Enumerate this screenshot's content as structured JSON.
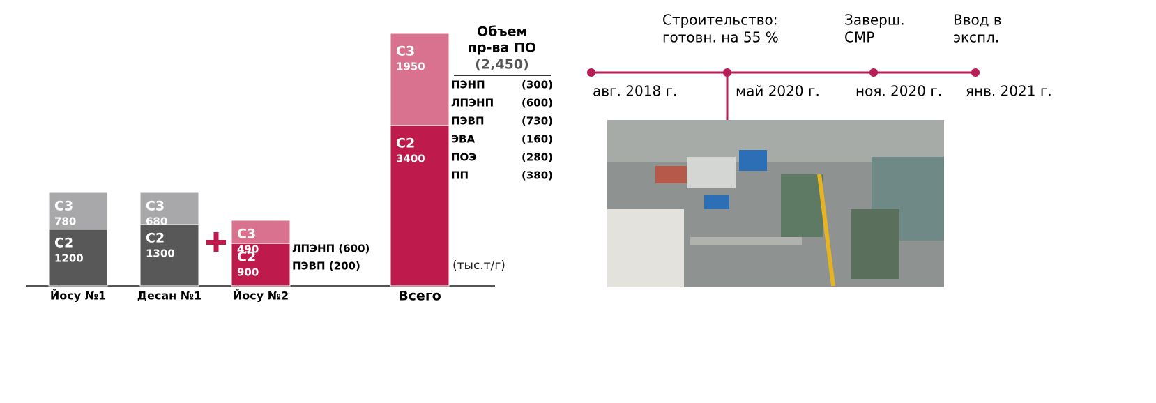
{
  "chart_data": {
    "type": "stacked-bar",
    "categories": [
      "Йосу №1",
      "Десан №1",
      "Йосу №2",
      "Всего"
    ],
    "series": [
      {
        "name": "C2",
        "colors": [
          "#585858",
          "#585858",
          "#bf1a4c",
          "#bf1a4c"
        ],
        "values": [
          1200,
          1300,
          900,
          3400
        ]
      },
      {
        "name": "C3",
        "colors": [
          "#a8a8aa",
          "#a8a8aa",
          "#d8728f",
          "#d8728f"
        ],
        "values": [
          780,
          680,
          490,
          1950
        ]
      }
    ],
    "annotations": [
      "ЛПЭНП (600)",
      "ПЭВП (200)"
    ],
    "unit": "(тыс.т/г)"
  },
  "products": {
    "title": [
      "Объем",
      "пр-ва ПО"
    ],
    "total": "(2,450)",
    "rows": [
      [
        "ПЭНП",
        "(300)"
      ],
      [
        "ЛПЭНП",
        "(600)"
      ],
      [
        "ПЭВП",
        "(730)"
      ],
      [
        "ЭВА",
        "(160)"
      ],
      [
        "ПОЭ",
        "(280)"
      ],
      [
        "ПП",
        "(380)"
      ]
    ]
  },
  "timeline": {
    "milestones": [
      {
        "date": "авг.  2018 г.",
        "label": []
      },
      {
        "date": "май 2020 г.",
        "label": [
          "Строительство:",
          "готовн. на 55 %"
        ]
      },
      {
        "date": "ноя. 2020 г.",
        "label": [
          "Заверш.",
          "СМР"
        ]
      },
      {
        "date": "янв. 2021 г.",
        "label": [
          "Ввод в",
          "экспл."
        ]
      }
    ]
  }
}
